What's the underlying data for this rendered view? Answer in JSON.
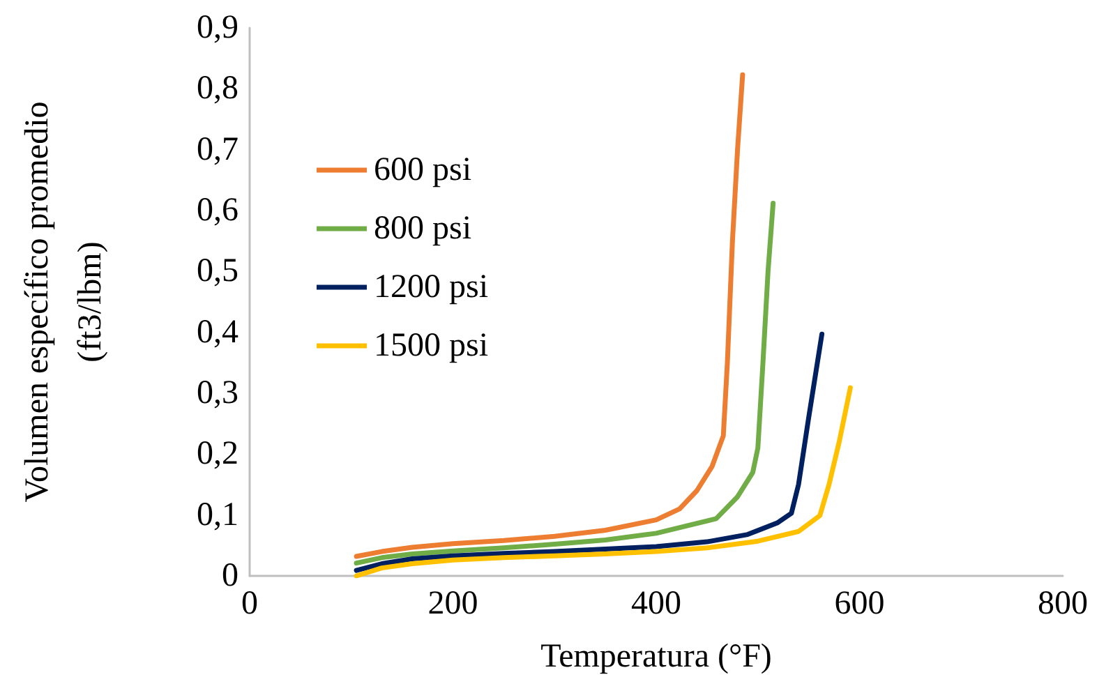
{
  "chart_data": {
    "type": "line",
    "xlabel": "Temperatura (°F)",
    "ylabel": "Volumen específico promedio (ft3/lbm)",
    "xlim": [
      0,
      800
    ],
    "xticks": [
      0,
      200,
      400,
      600,
      800
    ],
    "ylim": [
      0,
      0.9
    ],
    "yticks": [
      0,
      {
        "value": 0.1,
        "label": "0,1"
      },
      {
        "value": 0.2,
        "label": "0,2"
      },
      {
        "value": 0.3,
        "label": "0,3"
      },
      {
        "value": 0.4,
        "label": "0,4"
      },
      {
        "value": 0.5,
        "label": "0,5"
      },
      {
        "value": 0.6,
        "label": "0,6"
      },
      {
        "value": 0.7,
        "label": "0,7"
      },
      {
        "value": 0.8,
        "label": "0,8"
      },
      {
        "value": 0.9,
        "label": "0,9"
      }
    ],
    "grid": false,
    "legend": "top left",
    "marker": "none",
    "line_style": "solid",
    "series": [
      {
        "name": "600 psi",
        "color": "#ed7d31",
        "x": [
          105,
          130,
          160,
          200,
          250,
          300,
          350,
          400,
          423,
          440,
          455,
          466,
          470,
          475,
          480,
          485
        ],
        "values": [
          0.032,
          0.04,
          0.047,
          0.053,
          0.058,
          0.065,
          0.075,
          0.092,
          0.11,
          0.14,
          0.18,
          0.23,
          0.35,
          0.55,
          0.7,
          0.823
        ]
      },
      {
        "name": "800 psi",
        "color": "#70ad47",
        "x": [
          105,
          130,
          160,
          200,
          250,
          300,
          350,
          400,
          459,
          480,
          495,
          500,
          505,
          510,
          515
        ],
        "values": [
          0.021,
          0.03,
          0.036,
          0.041,
          0.046,
          0.052,
          0.059,
          0.07,
          0.094,
          0.13,
          0.17,
          0.21,
          0.35,
          0.5,
          0.612
        ]
      },
      {
        "name": "1200 psi",
        "color": "#002060",
        "x": [
          105,
          130,
          160,
          200,
          250,
          300,
          350,
          400,
          450,
          490,
          519,
          533,
          540,
          550,
          563
        ],
        "values": [
          0.009,
          0.02,
          0.028,
          0.033,
          0.037,
          0.04,
          0.044,
          0.048,
          0.056,
          0.068,
          0.087,
          0.103,
          0.15,
          0.26,
          0.397
        ]
      },
      {
        "name": "1500 psi",
        "color": "#ffc000",
        "x": [
          105,
          130,
          160,
          200,
          250,
          300,
          350,
          400,
          450,
          500,
          540,
          561,
          570,
          580,
          591
        ],
        "values": [
          0.0,
          0.013,
          0.02,
          0.026,
          0.03,
          0.033,
          0.036,
          0.04,
          0.046,
          0.057,
          0.073,
          0.099,
          0.15,
          0.22,
          0.309
        ]
      }
    ]
  }
}
